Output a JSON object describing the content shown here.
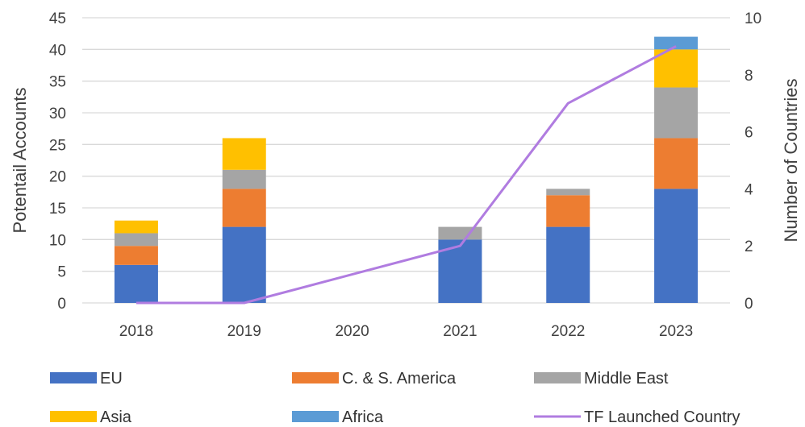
{
  "chart_data": {
    "type": "bar",
    "stacked": true,
    "categories": [
      "2018",
      "2019",
      "2020",
      "2021",
      "2022",
      "2023"
    ],
    "series": [
      {
        "name": "EU",
        "color": "#4472C4",
        "values": [
          6,
          12,
          0,
          10,
          12,
          18
        ]
      },
      {
        "name": "C. & S. America",
        "color": "#ED7D31",
        "values": [
          3,
          6,
          0,
          0,
          5,
          8
        ]
      },
      {
        "name": "Middle East",
        "color": "#A5A5A5",
        "values": [
          2,
          3,
          0,
          2,
          1,
          8
        ]
      },
      {
        "name": "Asia",
        "color": "#FFC000",
        "values": [
          2,
          5,
          0,
          0,
          0,
          6
        ]
      },
      {
        "name": "Africa",
        "color": "#5B9BD5",
        "values": [
          0,
          0,
          0,
          0,
          0,
          2
        ]
      }
    ],
    "line_series": {
      "name": "TF Launched Country",
      "color": "#B07CE0",
      "axis": "secondary",
      "values": [
        0,
        0,
        1,
        2,
        7,
        9
      ]
    },
    "ylabel": "Potentail Accounts",
    "y2label": "Number of Countries",
    "ylim": [
      0,
      45
    ],
    "yticks": [
      0,
      5,
      10,
      15,
      20,
      25,
      30,
      35,
      40,
      45
    ],
    "y2lim": [
      0,
      10
    ],
    "y2ticks": [
      0,
      2,
      4,
      6,
      8,
      10
    ],
    "grid": true,
    "legend_position": "bottom"
  }
}
